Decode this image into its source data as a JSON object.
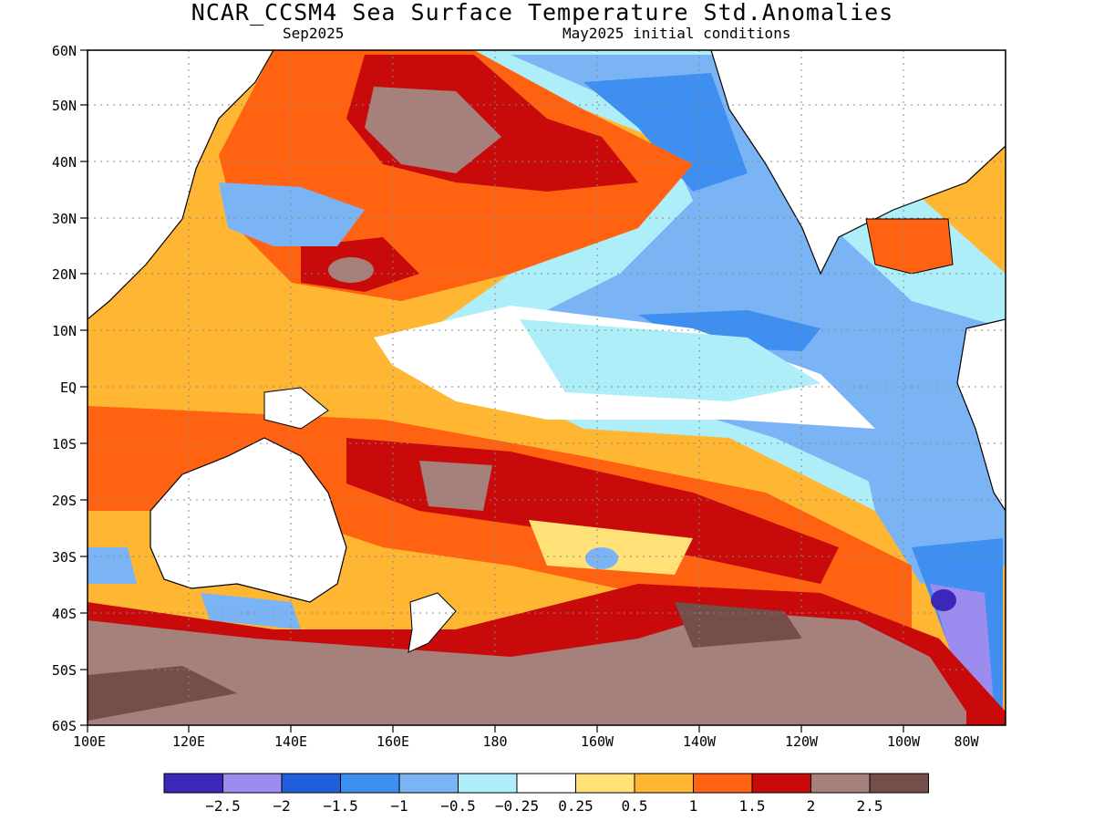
{
  "title": "NCAR_CCSM4 Sea Surface Temperature Std.Anomalies",
  "subtitle_left": "Sep2025",
  "subtitle_right": "May2025 initial conditions",
  "lat_labels": [
    "60N",
    "50N",
    "40N",
    "30N",
    "20N",
    "10N",
    "EQ",
    "10S",
    "20S",
    "30S",
    "40S",
    "50S",
    "60S"
  ],
  "lon_labels": [
    "100E",
    "120E",
    "140E",
    "160E",
    "180",
    "160W",
    "140W",
    "120W",
    "100W",
    "80W"
  ],
  "legend": {
    "colors": [
      "#3b28b8",
      "#9c8cf0",
      "#1f5fdc",
      "#3f8ff0",
      "#7ab4f5",
      "#aeeef8",
      "#ffffff",
      "#ffe177",
      "#ffb733",
      "#ff6210",
      "#c80a0a",
      "#a6807a",
      "#744e48"
    ],
    "labels": [
      "-2.5",
      "-2",
      "-1.5",
      "-1",
      "-0.5",
      "-0.25",
      "0.25",
      "0.5",
      "1",
      "1.5",
      "2",
      "2.5"
    ]
  }
}
